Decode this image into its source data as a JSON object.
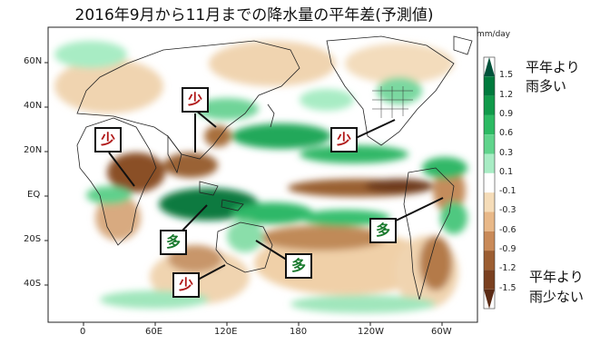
{
  "title": "2016年9月から11月までの降水量の平年差(予測値)",
  "unit": "mm/day",
  "axes": {
    "y_ticks": [
      "60N",
      "40N",
      "20N",
      "EQ",
      "20S",
      "40S"
    ],
    "x_ticks": [
      "0",
      "60E",
      "120E",
      "180",
      "120W",
      "60W"
    ]
  },
  "legend": {
    "wet_label_1": "平年より",
    "wet_label_2": "雨多い",
    "dry_label_1": "平年より",
    "dry_label_2": "雨少ない",
    "ticks": [
      "1.5",
      "1.2",
      "0.9",
      "0.6",
      "0.3",
      "0.1",
      "-0.1",
      "-0.3",
      "-0.6",
      "-0.9",
      "-1.2",
      "-1.5"
    ],
    "colors": [
      "#00523a",
      "#007a3d",
      "#109a4a",
      "#2cba63",
      "#60d48c",
      "#a8ecc4",
      "#ffffff",
      "#f5dcb8",
      "#e8b888",
      "#c98a58",
      "#9c5e32",
      "#7a4020",
      "#5a2a14"
    ]
  },
  "markers": [
    {
      "label": "少",
      "type": "dry"
    },
    {
      "label": "少",
      "type": "dry"
    },
    {
      "label": "少",
      "type": "dry"
    },
    {
      "label": "少",
      "type": "dry"
    },
    {
      "label": "多",
      "type": "wet"
    },
    {
      "label": "多",
      "type": "wet"
    },
    {
      "label": "多",
      "type": "wet"
    }
  ]
}
